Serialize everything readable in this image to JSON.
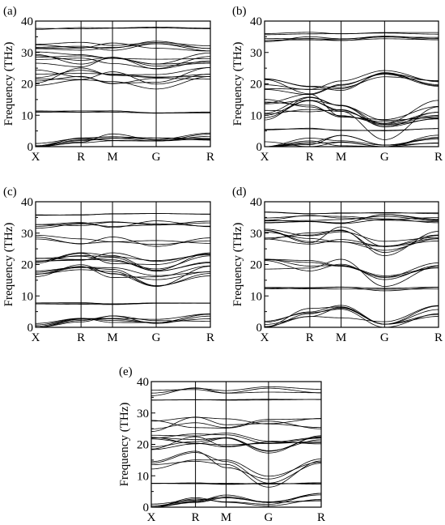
{
  "figure": {
    "panels": [
      "(a)",
      "(b)",
      "(c)",
      "(d)",
      "(e)"
    ]
  },
  "chart_data": [
    {
      "panel": "(a)",
      "type": "line",
      "ylabel": "Frequency (THz)",
      "ylim": [
        0,
        40
      ],
      "yticks": [
        0,
        10,
        20,
        30,
        40
      ],
      "path_points": [
        "X",
        "R",
        "M",
        "G",
        "R"
      ],
      "path_positions": [
        0,
        0.26,
        0.44,
        0.69,
        1.0
      ],
      "band_groups": [
        {
          "values": [
            0.0,
            2.0,
            3.0,
            1.8,
            3.2
          ],
          "spread": 1.2,
          "count": 7
        },
        {
          "values": [
            11.0,
            11.1,
            11.2,
            11.0,
            11.1
          ],
          "spread": 0.4,
          "count": 3
        },
        {
          "values": [
            22.0,
            23.0,
            22.5,
            20.5,
            22.8
          ],
          "spread": 2.5,
          "count": 7
        },
        {
          "values": [
            28.0,
            27.5,
            28.5,
            27.0,
            28.3
          ],
          "spread": 2.5,
          "count": 6
        },
        {
          "values": [
            31.5,
            32.0,
            31.8,
            32.5,
            31.9
          ],
          "spread": 1.5,
          "count": 5
        },
        {
          "values": [
            37.6,
            37.8,
            37.7,
            37.9,
            37.7
          ],
          "spread": 0.3,
          "count": 2
        }
      ]
    },
    {
      "panel": "(b)",
      "type": "line",
      "ylabel": "Frequency (THz)",
      "ylim": [
        0,
        40
      ],
      "yticks": [
        0,
        10,
        20,
        30,
        40
      ],
      "path_points": [
        "X",
        "R",
        "M",
        "G",
        "R"
      ],
      "path_positions": [
        0,
        0.26,
        0.44,
        0.69,
        1.0
      ],
      "band_groups": [
        {
          "values": [
            0.0,
            1.5,
            2.0,
            0.5,
            2.5
          ],
          "spread": 1.8,
          "count": 6
        },
        {
          "values": [
            5.5,
            5.6,
            5.4,
            5.2,
            5.5
          ],
          "spread": 0.3,
          "count": 2
        },
        {
          "values": [
            12.0,
            14.0,
            12.5,
            5.5,
            12.0
          ],
          "spread": 3.5,
          "count": 10
        },
        {
          "values": [
            20.0,
            19.0,
            19.5,
            22.0,
            19.8
          ],
          "spread": 2.5,
          "count": 6
        },
        {
          "values": [
            34.0,
            34.5,
            34.2,
            34.6,
            34.3
          ],
          "spread": 0.6,
          "count": 4
        },
        {
          "values": [
            36.0,
            36.2,
            36.1,
            36.3,
            36.2
          ],
          "spread": 0.4,
          "count": 2
        }
      ]
    },
    {
      "panel": "(c)",
      "type": "line",
      "ylabel": "Frequency (THz)",
      "ylim": [
        0,
        40
      ],
      "yticks": [
        0,
        10,
        20,
        30,
        40
      ],
      "path_points": [
        "X",
        "R",
        "M",
        "G",
        "R"
      ],
      "path_positions": [
        0,
        0.26,
        0.44,
        0.69,
        1.0
      ],
      "band_groups": [
        {
          "values": [
            0.0,
            2.0,
            2.8,
            1.5,
            3.0
          ],
          "spread": 1.3,
          "count": 6
        },
        {
          "values": [
            7.5,
            7.6,
            7.4,
            7.5,
            7.6
          ],
          "spread": 0.3,
          "count": 3
        },
        {
          "values": [
            17.0,
            18.0,
            17.5,
            14.5,
            17.8
          ],
          "spread": 2.0,
          "count": 6
        },
        {
          "values": [
            21.5,
            22.5,
            22.0,
            19.5,
            22.2
          ],
          "spread": 2.0,
          "count": 7
        },
        {
          "values": [
            28.0,
            27.5,
            28.2,
            27.0,
            28.0
          ],
          "spread": 1.5,
          "count": 3
        },
        {
          "values": [
            32.5,
            33.0,
            32.8,
            33.5,
            32.9
          ],
          "spread": 1.0,
          "count": 4
        },
        {
          "values": [
            35.8,
            36.0,
            35.9,
            36.1,
            35.9
          ],
          "spread": 0.3,
          "count": 2
        }
      ]
    },
    {
      "panel": "(d)",
      "type": "line",
      "ylabel": "Frequency (THz)",
      "ylim": [
        0,
        40
      ],
      "yticks": [
        0,
        10,
        20,
        30,
        40
      ],
      "path_points": [
        "X",
        "R",
        "M",
        "G",
        "R"
      ],
      "path_positions": [
        0,
        0.26,
        0.44,
        0.69,
        1.0
      ],
      "band_groups": [
        {
          "values": [
            0.0,
            4.5,
            5.0,
            1.0,
            5.0
          ],
          "spread": 2.0,
          "count": 6
        },
        {
          "values": [
            12.5,
            12.3,
            12.4,
            12.0,
            12.5
          ],
          "spread": 0.5,
          "count": 3
        },
        {
          "values": [
            20.0,
            19.5,
            20.0,
            14.5,
            19.8
          ],
          "spread": 2.0,
          "count": 5
        },
        {
          "values": [
            29.0,
            28.5,
            29.5,
            25.0,
            29.0
          ],
          "spread": 2.5,
          "count": 7
        },
        {
          "values": [
            34.0,
            34.5,
            34.2,
            35.0,
            34.3
          ],
          "spread": 1.2,
          "count": 6
        },
        {
          "values": [
            36.5,
            36.3,
            36.4,
            36.6,
            36.5
          ],
          "spread": 0.3,
          "count": 2
        }
      ]
    },
    {
      "panel": "(e)",
      "type": "line",
      "ylabel": "Frequency (THz)",
      "ylim": [
        0,
        40
      ],
      "yticks": [
        0,
        10,
        20,
        30,
        40
      ],
      "path_points": [
        "X",
        "R",
        "M",
        "G",
        "R"
      ],
      "path_positions": [
        0,
        0.26,
        0.44,
        0.69,
        1.0
      ],
      "band_groups": [
        {
          "values": [
            0.0,
            2.5,
            3.0,
            1.5,
            3.2
          ],
          "spread": 1.5,
          "count": 6
        },
        {
          "values": [
            7.5,
            7.6,
            7.5,
            7.4,
            7.6
          ],
          "spread": 0.3,
          "count": 3
        },
        {
          "values": [
            13.0,
            16.0,
            14.5,
            8.0,
            14.0
          ],
          "spread": 2.0,
          "count": 4
        },
        {
          "values": [
            20.5,
            21.0,
            21.5,
            19.5,
            21.0
          ],
          "spread": 2.5,
          "count": 8
        },
        {
          "values": [
            26.0,
            27.0,
            26.5,
            26.0,
            26.8
          ],
          "spread": 2.0,
          "count": 4
        },
        {
          "values": [
            34.0,
            34.2,
            34.1,
            34.3,
            34.1
          ],
          "spread": 0.3,
          "count": 2
        },
        {
          "values": [
            36.5,
            37.0,
            36.8,
            37.5,
            36.9
          ],
          "spread": 1.0,
          "count": 3
        }
      ]
    }
  ]
}
